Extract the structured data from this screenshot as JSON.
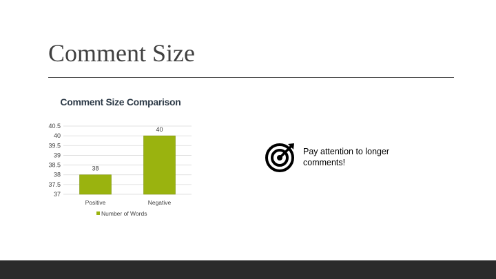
{
  "slide": {
    "title": "Comment Size"
  },
  "callout": {
    "text": "Pay attention to longer comments!",
    "icon": "target-arrow-icon"
  },
  "colors": {
    "bar": "#9ab30f",
    "footer": "#2b2b2b"
  },
  "chart_data": {
    "type": "bar",
    "title": "Comment Size Comparison",
    "categories": [
      "Positive",
      "Negative"
    ],
    "series": [
      {
        "name": "Number of Words",
        "values": [
          38,
          40
        ]
      }
    ],
    "ylim": [
      37,
      40.5
    ],
    "yticks": [
      "40.5",
      "40",
      "39.5",
      "39",
      "38.5",
      "38",
      "37.5",
      "37"
    ],
    "data_labels": [
      "38",
      "40"
    ],
    "grid": true,
    "legend": "bottom",
    "xlabel": "",
    "ylabel": ""
  }
}
